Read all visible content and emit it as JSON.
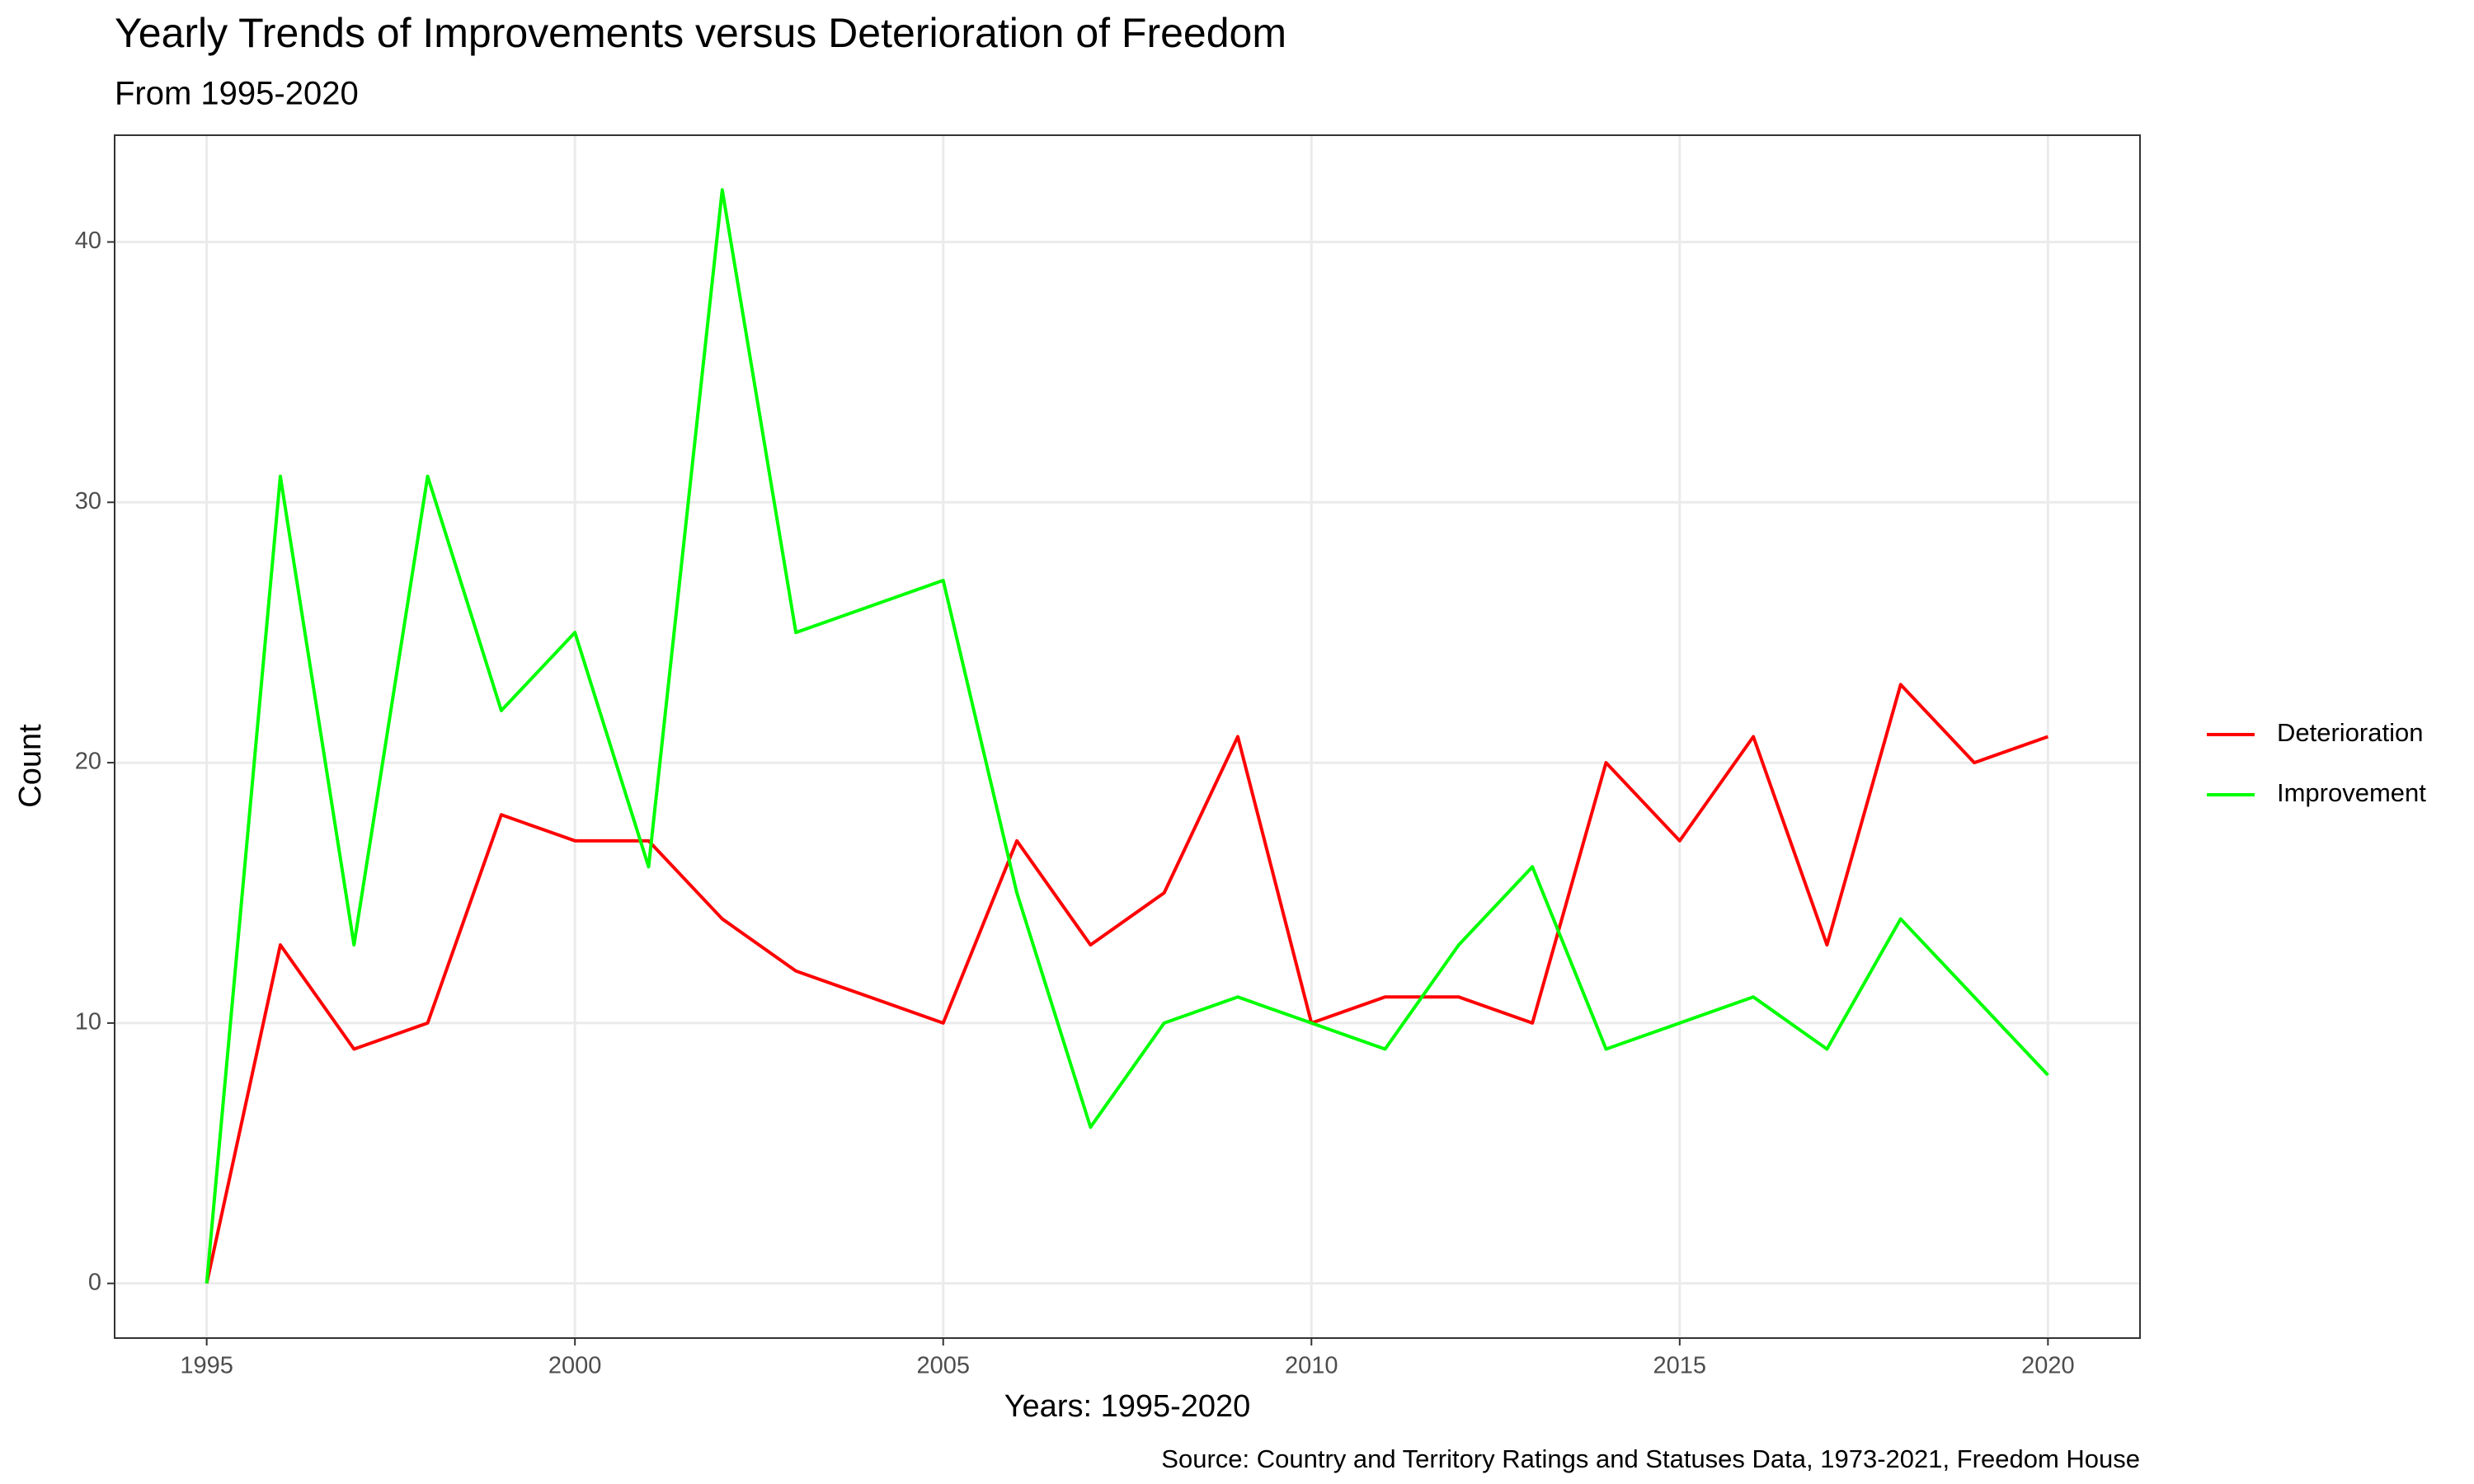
{
  "chart_data": {
    "type": "line",
    "title": "Yearly Trends of Improvements versus Deterioration of Freedom",
    "subtitle": "From 1995-2020",
    "x_label": "Years: 1995-2020",
    "y_label": "Count",
    "caption": "Source: Country and Territory Ratings and Statuses Data, 1973-2021, Freedom House",
    "x": [
      1995,
      1996,
      1997,
      1998,
      1999,
      2000,
      2001,
      2002,
      2003,
      2004,
      2005,
      2006,
      2007,
      2008,
      2009,
      2010,
      2011,
      2012,
      2013,
      2014,
      2015,
      2016,
      2017,
      2018,
      2019,
      2020
    ],
    "series": [
      {
        "name": "Deterioration",
        "color": "#ff0000",
        "values": [
          0,
          13,
          9,
          10,
          18,
          17,
          17,
          14,
          12,
          11,
          10,
          17,
          13,
          15,
          21,
          10,
          11,
          11,
          10,
          20,
          17,
          21,
          13,
          23,
          20,
          21
        ]
      },
      {
        "name": "Improvement",
        "color": "#00ff00",
        "values": [
          0,
          31,
          13,
          31,
          22,
          25,
          16,
          42,
          25,
          26,
          27,
          15,
          6,
          10,
          11,
          10,
          9,
          13,
          16,
          9,
          10,
          11,
          9,
          14,
          11,
          8
        ]
      }
    ],
    "xlim": [
      1993.75,
      2021.25
    ],
    "xticks": [
      1995,
      2000,
      2005,
      2010,
      2015,
      2020
    ],
    "ylim": [
      -2.1,
      44.1
    ],
    "yticks": [
      0,
      10,
      20,
      30,
      40
    ],
    "grid": true,
    "legend": "right"
  }
}
